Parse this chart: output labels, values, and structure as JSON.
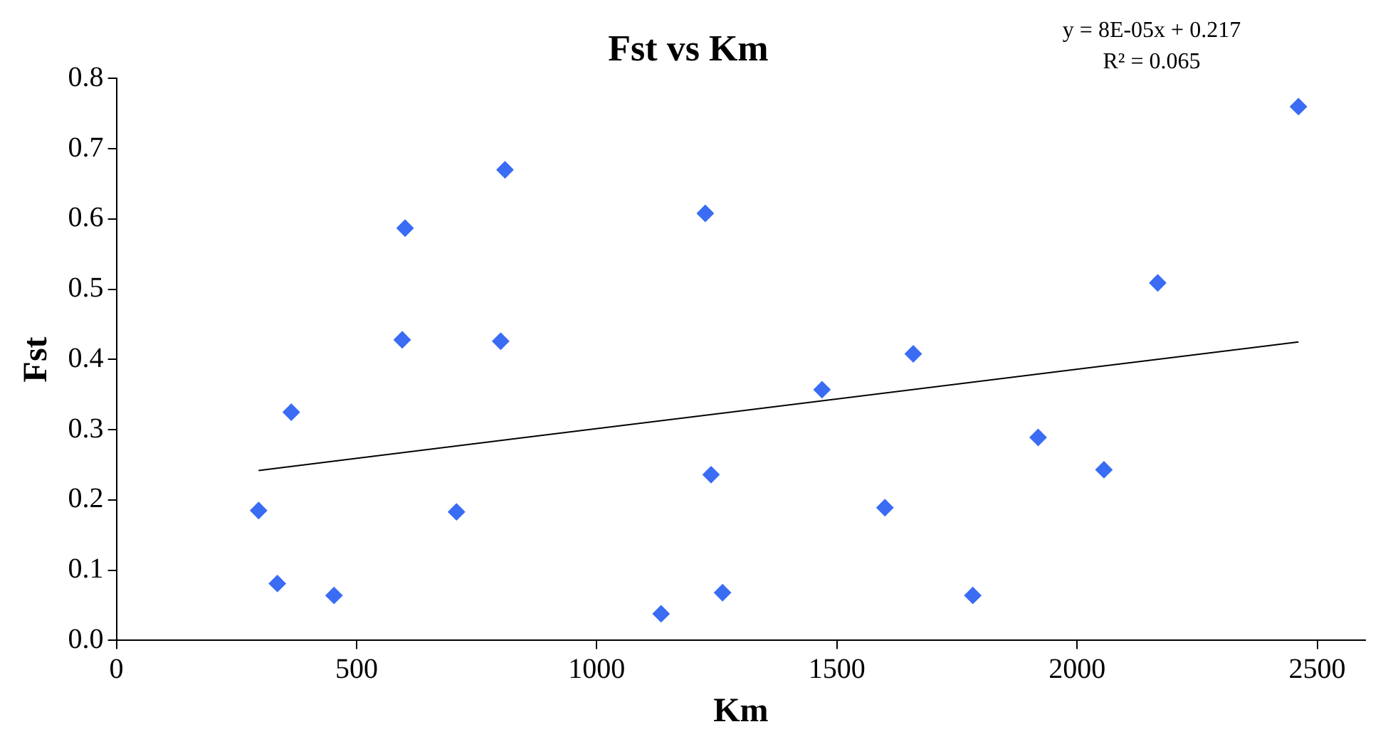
{
  "chart_data": {
    "type": "scatter",
    "title": "Fst vs Km",
    "xlabel": "Km",
    "ylabel": "Fst",
    "annotations": [
      "y = 8E-05x + 0.217",
      "R² = 0.065"
    ],
    "series": [
      {
        "type": "scatter",
        "color": "#3a6cf4",
        "marker": "diamond",
        "x": [
          296,
          335,
          364,
          453,
          595,
          601,
          708,
          800,
          809,
          1134,
          1226,
          1238,
          1262,
          1469,
          1600,
          1659,
          1783,
          1919,
          2056,
          2168,
          2461
        ],
        "values": [
          0.185,
          0.081,
          0.325,
          0.064,
          0.428,
          0.587,
          0.183,
          0.426,
          0.67,
          0.038,
          0.608,
          0.236,
          0.068,
          0.357,
          0.189,
          0.408,
          0.064,
          0.289,
          0.243,
          0.509,
          0.76
        ]
      },
      {
        "type": "line",
        "color": "#000000",
        "marker": "none",
        "x": [
          296,
          2461
        ],
        "values": [
          0.242,
          0.425
        ]
      }
    ],
    "xlim": [
      0,
      2600
    ],
    "xticks": [
      0,
      500,
      1000,
      1500,
      2000,
      2500
    ],
    "ylim": [
      0,
      0.8
    ],
    "yticks": [
      {
        "value": 0,
        "label": "0.0"
      },
      0.1,
      0.2,
      0.3,
      0.4,
      0.5,
      0.6,
      0.7,
      0.8
    ],
    "grid": false,
    "legend": false
  }
}
